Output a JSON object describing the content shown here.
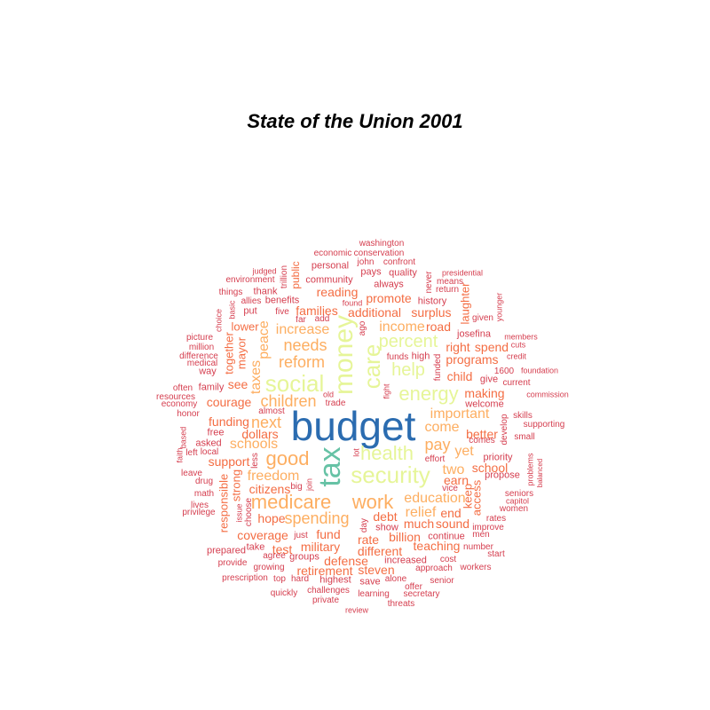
{
  "chart_data": {
    "type": "wordcloud",
    "title": "State of the Union 2001",
    "palette": {
      "1": "#D53E4F",
      "2": "#F46D43",
      "3": "#FDAE61",
      "4": "#E6F598",
      "5": "#ABDDA4",
      "6": "#66C2A5",
      "7": "#3288BD",
      "8": "#2B6CB0"
    },
    "words": [
      {
        "text": "budget",
        "weight": 8
      },
      {
        "text": "tax",
        "weight": 6
      },
      {
        "text": "money",
        "weight": 4
      },
      {
        "text": "care",
        "weight": 4
      },
      {
        "text": "social",
        "weight": 4
      },
      {
        "text": "security",
        "weight": 4
      },
      {
        "text": "health",
        "weight": 4
      },
      {
        "text": "energy",
        "weight": 4
      },
      {
        "text": "help",
        "weight": 4
      },
      {
        "text": "percent",
        "weight": 4
      },
      {
        "text": "medicare",
        "weight": 3
      },
      {
        "text": "work",
        "weight": 3
      },
      {
        "text": "good",
        "weight": 3
      },
      {
        "text": "reform",
        "weight": 3
      },
      {
        "text": "needs",
        "weight": 3
      },
      {
        "text": "children",
        "weight": 3
      },
      {
        "text": "pay",
        "weight": 3
      },
      {
        "text": "spending",
        "weight": 3
      },
      {
        "text": "next",
        "weight": 3
      },
      {
        "text": "schools",
        "weight": 3
      },
      {
        "text": "increase",
        "weight": 3
      },
      {
        "text": "freedom",
        "weight": 3
      },
      {
        "text": "income",
        "weight": 3
      },
      {
        "text": "important",
        "weight": 3
      },
      {
        "text": "education",
        "weight": 3
      },
      {
        "text": "taxes",
        "weight": 3
      },
      {
        "text": "come",
        "weight": 3
      },
      {
        "text": "yet",
        "weight": 3
      },
      {
        "text": "two",
        "weight": 3
      },
      {
        "text": "relief",
        "weight": 3
      },
      {
        "text": "peace",
        "weight": 3
      },
      {
        "text": "families",
        "weight": 2
      },
      {
        "text": "additional",
        "weight": 2
      },
      {
        "text": "promote",
        "weight": 2
      },
      {
        "text": "reading",
        "weight": 2
      },
      {
        "text": "programs",
        "weight": 2
      },
      {
        "text": "child",
        "weight": 2
      },
      {
        "text": "right",
        "weight": 2
      },
      {
        "text": "spend",
        "weight": 2
      },
      {
        "text": "road",
        "weight": 2
      },
      {
        "text": "funding",
        "weight": 2
      },
      {
        "text": "dollars",
        "weight": 2
      },
      {
        "text": "support",
        "weight": 2
      },
      {
        "text": "citizens",
        "weight": 2
      },
      {
        "text": "hope",
        "weight": 2
      },
      {
        "text": "coverage",
        "weight": 2
      },
      {
        "text": "military",
        "weight": 2
      },
      {
        "text": "fund",
        "weight": 2
      },
      {
        "text": "rate",
        "weight": 2
      },
      {
        "text": "debt",
        "weight": 2
      },
      {
        "text": "billion",
        "weight": 2
      },
      {
        "text": "much",
        "weight": 2
      },
      {
        "text": "sound",
        "weight": 2
      },
      {
        "text": "end",
        "weight": 2
      },
      {
        "text": "earn",
        "weight": 2
      },
      {
        "text": "school",
        "weight": 2
      },
      {
        "text": "better",
        "weight": 2
      },
      {
        "text": "making",
        "weight": 2
      },
      {
        "text": "see",
        "weight": 2
      },
      {
        "text": "courage",
        "weight": 2
      },
      {
        "text": "different",
        "weight": 2
      },
      {
        "text": "teaching",
        "weight": 2
      },
      {
        "text": "defense",
        "weight": 2
      },
      {
        "text": "retirement",
        "weight": 2
      },
      {
        "text": "steven",
        "weight": 2
      },
      {
        "text": "test",
        "weight": 2
      },
      {
        "text": "surplus",
        "weight": 2
      },
      {
        "text": "lower",
        "weight": 2
      },
      {
        "text": "together",
        "weight": 2
      },
      {
        "text": "mayor",
        "weight": 2
      },
      {
        "text": "responsible",
        "weight": 2
      },
      {
        "text": "strong",
        "weight": 2
      },
      {
        "text": "keep",
        "weight": 2
      },
      {
        "text": "access",
        "weight": 2
      },
      {
        "text": "laughter",
        "weight": 2
      },
      {
        "text": "public",
        "weight": 2
      },
      {
        "text": "community",
        "weight": 1
      },
      {
        "text": "washington",
        "weight": 1
      },
      {
        "text": "economic",
        "weight": 1
      },
      {
        "text": "conservation",
        "weight": 1
      },
      {
        "text": "personal",
        "weight": 1
      },
      {
        "text": "john",
        "weight": 1
      },
      {
        "text": "confront",
        "weight": 1
      },
      {
        "text": "pays",
        "weight": 1
      },
      {
        "text": "quality",
        "weight": 1
      },
      {
        "text": "always",
        "weight": 1
      },
      {
        "text": "judged",
        "weight": 1
      },
      {
        "text": "environment",
        "weight": 1
      },
      {
        "text": "trillion",
        "weight": 1
      },
      {
        "text": "presidential",
        "weight": 1
      },
      {
        "text": "means",
        "weight": 1
      },
      {
        "text": "return",
        "weight": 1
      },
      {
        "text": "never",
        "weight": 1
      },
      {
        "text": "things",
        "weight": 1
      },
      {
        "text": "thank",
        "weight": 1
      },
      {
        "text": "history",
        "weight": 1
      },
      {
        "text": "allies",
        "weight": 1
      },
      {
        "text": "benefits",
        "weight": 1
      },
      {
        "text": "found",
        "weight": 1
      },
      {
        "text": "put",
        "weight": 1
      },
      {
        "text": "five",
        "weight": 1
      },
      {
        "text": "far",
        "weight": 1
      },
      {
        "text": "add",
        "weight": 1
      },
      {
        "text": "ago",
        "weight": 1
      },
      {
        "text": "given",
        "weight": 1
      },
      {
        "text": "younger",
        "weight": 1
      },
      {
        "text": "basic",
        "weight": 1
      },
      {
        "text": "choice",
        "weight": 1
      },
      {
        "text": "josefina",
        "weight": 1
      },
      {
        "text": "members",
        "weight": 1
      },
      {
        "text": "cuts",
        "weight": 1
      },
      {
        "text": "picture",
        "weight": 1
      },
      {
        "text": "million",
        "weight": 1
      },
      {
        "text": "funds",
        "weight": 1
      },
      {
        "text": "high",
        "weight": 1
      },
      {
        "text": "credit",
        "weight": 1
      },
      {
        "text": "difference",
        "weight": 1
      },
      {
        "text": "medical",
        "weight": 1
      },
      {
        "text": "funded",
        "weight": 1
      },
      {
        "text": "1600",
        "weight": 1
      },
      {
        "text": "foundation",
        "weight": 1
      },
      {
        "text": "way",
        "weight": 1
      },
      {
        "text": "give",
        "weight": 1
      },
      {
        "text": "current",
        "weight": 1
      },
      {
        "text": "often",
        "weight": 1
      },
      {
        "text": "family",
        "weight": 1
      },
      {
        "text": "resources",
        "weight": 1
      },
      {
        "text": "old",
        "weight": 1
      },
      {
        "text": "fight",
        "weight": 1
      },
      {
        "text": "commission",
        "weight": 1
      },
      {
        "text": "economy",
        "weight": 1
      },
      {
        "text": "trade",
        "weight": 1
      },
      {
        "text": "welcome",
        "weight": 1
      },
      {
        "text": "honor",
        "weight": 1
      },
      {
        "text": "almost",
        "weight": 1
      },
      {
        "text": "skills",
        "weight": 1
      },
      {
        "text": "supporting",
        "weight": 1
      },
      {
        "text": "free",
        "weight": 1
      },
      {
        "text": "develop",
        "weight": 1
      },
      {
        "text": "comes",
        "weight": 1
      },
      {
        "text": "small",
        "weight": 1
      },
      {
        "text": "faith",
        "weight": 1
      },
      {
        "text": "based",
        "weight": 1
      },
      {
        "text": "asked",
        "weight": 1
      },
      {
        "text": "left",
        "weight": 1
      },
      {
        "text": "local",
        "weight": 1
      },
      {
        "text": "lot",
        "weight": 1
      },
      {
        "text": "effort",
        "weight": 1
      },
      {
        "text": "priority",
        "weight": 1
      },
      {
        "text": "propose",
        "weight": 1
      },
      {
        "text": "problems",
        "weight": 1
      },
      {
        "text": "balanced",
        "weight": 1
      },
      {
        "text": "leave",
        "weight": 1
      },
      {
        "text": "drug",
        "weight": 1
      },
      {
        "text": "less",
        "weight": 1
      },
      {
        "text": "join",
        "weight": 1
      },
      {
        "text": "big",
        "weight": 1
      },
      {
        "text": "vice",
        "weight": 1
      },
      {
        "text": "seniors",
        "weight": 1
      },
      {
        "text": "capitol",
        "weight": 1
      },
      {
        "text": "math",
        "weight": 1
      },
      {
        "text": "lives",
        "weight": 1
      },
      {
        "text": "privilege",
        "weight": 1
      },
      {
        "text": "issue",
        "weight": 1
      },
      {
        "text": "choose",
        "weight": 1
      },
      {
        "text": "women",
        "weight": 1
      },
      {
        "text": "rates",
        "weight": 1
      },
      {
        "text": "day",
        "weight": 1
      },
      {
        "text": "show",
        "weight": 1
      },
      {
        "text": "improve",
        "weight": 1
      },
      {
        "text": "continue",
        "weight": 1
      },
      {
        "text": "men",
        "weight": 1
      },
      {
        "text": "prepared",
        "weight": 1
      },
      {
        "text": "take",
        "weight": 1
      },
      {
        "text": "just",
        "weight": 1
      },
      {
        "text": "number",
        "weight": 1
      },
      {
        "text": "start",
        "weight": 1
      },
      {
        "text": "agree",
        "weight": 1
      },
      {
        "text": "groups",
        "weight": 1
      },
      {
        "text": "increased",
        "weight": 1
      },
      {
        "text": "cost",
        "weight": 1
      },
      {
        "text": "provide",
        "weight": 1
      },
      {
        "text": "growing",
        "weight": 1
      },
      {
        "text": "approach",
        "weight": 1
      },
      {
        "text": "workers",
        "weight": 1
      },
      {
        "text": "prescription",
        "weight": 1
      },
      {
        "text": "top",
        "weight": 1
      },
      {
        "text": "hard",
        "weight": 1
      },
      {
        "text": "highest",
        "weight": 1
      },
      {
        "text": "save",
        "weight": 1
      },
      {
        "text": "alone",
        "weight": 1
      },
      {
        "text": "senior",
        "weight": 1
      },
      {
        "text": "offer",
        "weight": 1
      },
      {
        "text": "quickly",
        "weight": 1
      },
      {
        "text": "challenges",
        "weight": 1
      },
      {
        "text": "learning",
        "weight": 1
      },
      {
        "text": "secretary",
        "weight": 1
      },
      {
        "text": "private",
        "weight": 1
      },
      {
        "text": "threats",
        "weight": 1
      },
      {
        "text": "review",
        "weight": 1
      }
    ]
  }
}
